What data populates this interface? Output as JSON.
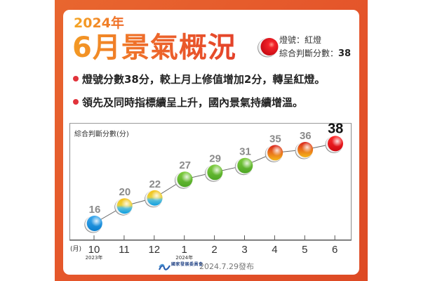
{
  "header": {
    "year": "2024年",
    "title": "6月景氣概況",
    "signal_line": "燈號：紅燈",
    "score_label": "綜合判斷分數：",
    "score_value": "38",
    "signal_icon": "red-light-icon"
  },
  "bullets": [
    "燈號分數38分，較上月上修值增加2分，轉呈紅燈。",
    "領先及同時指標續呈上升，國內景氣持續增溫。"
  ],
  "footer": {
    "logo_name": "國家發展委員會",
    "publish": "2024.7.29發布"
  },
  "colors": {
    "frame": "#e4532a",
    "blue": "#0d8fdb",
    "yellow_blue": "#f3c21b",
    "green": "#5cb82d",
    "yellow_red": "#e89318",
    "red": "#e2121b"
  },
  "chart_data": {
    "type": "line",
    "title": "",
    "ylabel": "綜合判斷分數(分)",
    "xlabel": "(月)",
    "categories": [
      "10",
      "11",
      "12",
      "1",
      "2",
      "3",
      "4",
      "5",
      "6"
    ],
    "year_marks": {
      "10": "2023年",
      "1": "2024年"
    },
    "values": [
      16,
      20,
      22,
      27,
      29,
      31,
      35,
      36,
      38
    ],
    "signals": [
      "blue",
      "yellow_blue",
      "yellow_blue",
      "green",
      "green",
      "green",
      "yellow_red",
      "yellow_red",
      "red"
    ],
    "highlight_last": true,
    "grid": false
  }
}
